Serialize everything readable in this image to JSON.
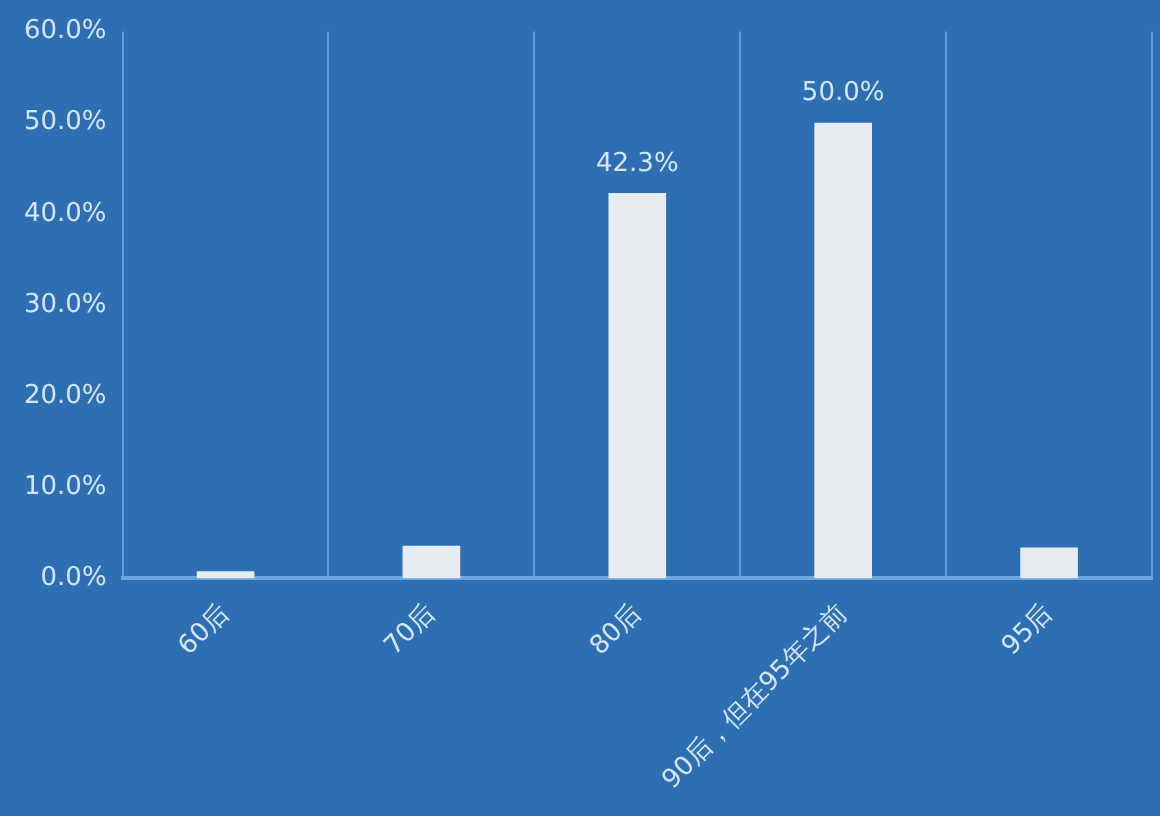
{
  "chart_data": {
    "type": "bar",
    "categories": [
      "60后",
      "70后",
      "80后",
      "90后，但在95年之前",
      "95后"
    ],
    "values": [
      0.8,
      3.6,
      42.3,
      50.0,
      3.4
    ],
    "value_labels": [
      null,
      null,
      "42.3%",
      "50.0%",
      null
    ],
    "color": "#e6ecef",
    "ylim": [
      0,
      60
    ],
    "yticks": [
      {
        "value": 0,
        "label": "0.0%"
      },
      {
        "value": 10,
        "label": "10.0%"
      },
      {
        "value": 20,
        "label": "20.0%"
      },
      {
        "value": 30,
        "label": "30.0%"
      },
      {
        "value": 40,
        "label": "40.0%"
      },
      {
        "value": 50,
        "label": "50.0%"
      },
      {
        "value": 60,
        "label": "60.0%"
      }
    ],
    "grid": "x"
  }
}
